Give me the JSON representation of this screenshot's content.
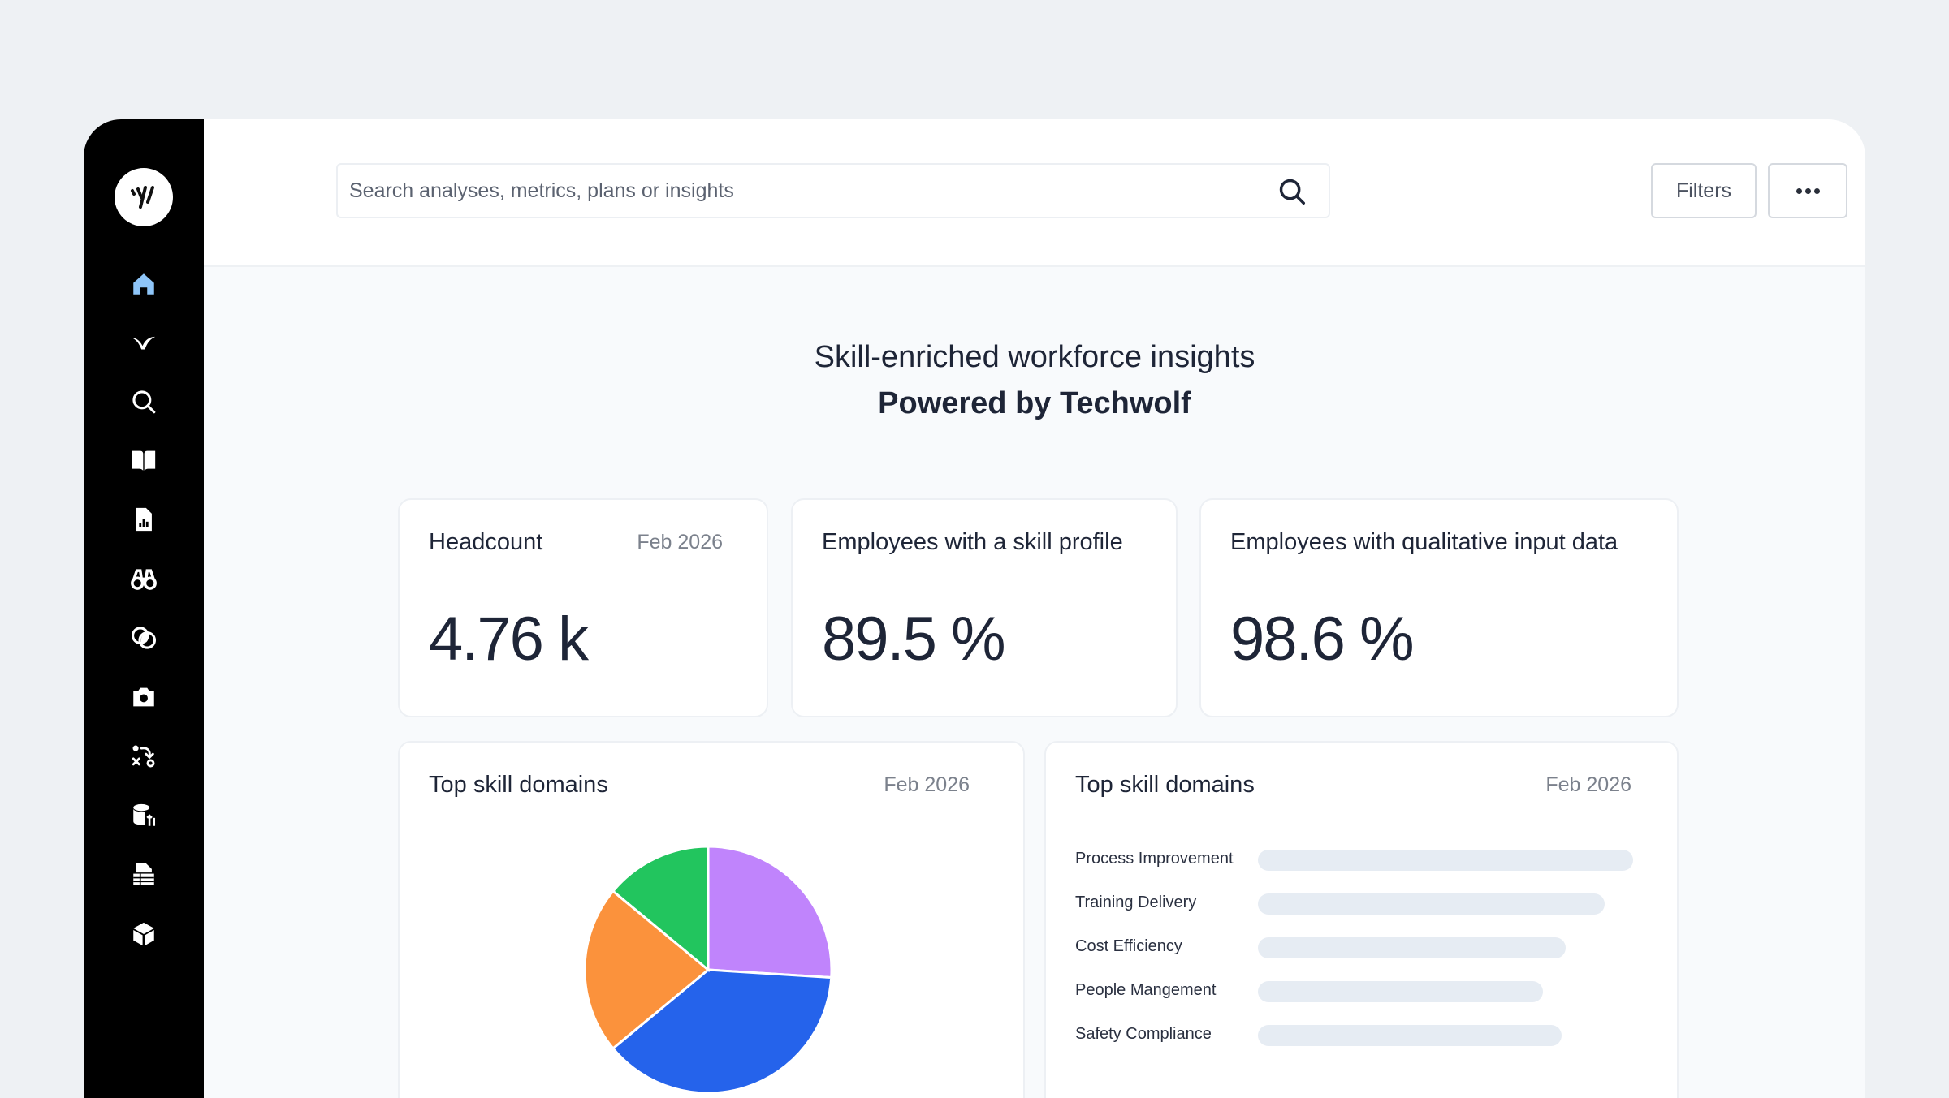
{
  "search": {
    "placeholder": "Search analyses, metrics, plans or insights"
  },
  "toolbar": {
    "filters_label": "Filters"
  },
  "sidebar": {
    "items": [
      {
        "icon": "home-icon",
        "active": true
      },
      {
        "icon": "techwolf-icon"
      },
      {
        "icon": "search-icon"
      },
      {
        "icon": "book-icon"
      },
      {
        "icon": "report-icon"
      },
      {
        "icon": "binoculars-icon"
      },
      {
        "icon": "overlap-icon"
      },
      {
        "icon": "camera-icon"
      },
      {
        "icon": "strategy-icon"
      },
      {
        "icon": "database-icon"
      },
      {
        "icon": "table-report-icon"
      },
      {
        "icon": "cube-icon"
      }
    ]
  },
  "header": {
    "title": "Skill-enriched workforce insights",
    "subtitle": "Powered by Techwolf"
  },
  "cards": {
    "headcount": {
      "title": "Headcount",
      "date": "Feb 2026",
      "value": "4.76 k"
    },
    "skill_profile": {
      "title": "Employees with a skill profile",
      "value": "89.5 %"
    },
    "qualitative": {
      "title": "Employees with qualitative input data",
      "value": "98.6 %"
    },
    "pie": {
      "title": "Top skill domains",
      "date": "Feb 2026"
    },
    "bars": {
      "title": "Top skill domains",
      "date": "Feb 2026"
    }
  },
  "chart_data": [
    {
      "type": "pie",
      "title": "Top skill domains",
      "slices": [
        {
          "value": 26,
          "color": "#c084fc"
        },
        {
          "value": 38,
          "color": "#2563eb"
        },
        {
          "value": 22,
          "color": "#fb923c"
        },
        {
          "value": 14,
          "color": "#22c55e"
        }
      ]
    },
    {
      "type": "bar",
      "title": "Top skill domains",
      "categories": [
        "Process Improvement",
        "Training Delivery",
        "Cost Efficiency",
        "People Mangement",
        "Safety Compliance"
      ],
      "values": [
        100,
        92.5,
        82,
        76,
        81
      ]
    }
  ],
  "colors": {
    "sidebar_bg": "#000000",
    "active_icon": "#8ec5f8",
    "icon": "#ffffff",
    "bar_track": "#e6ecf3"
  }
}
